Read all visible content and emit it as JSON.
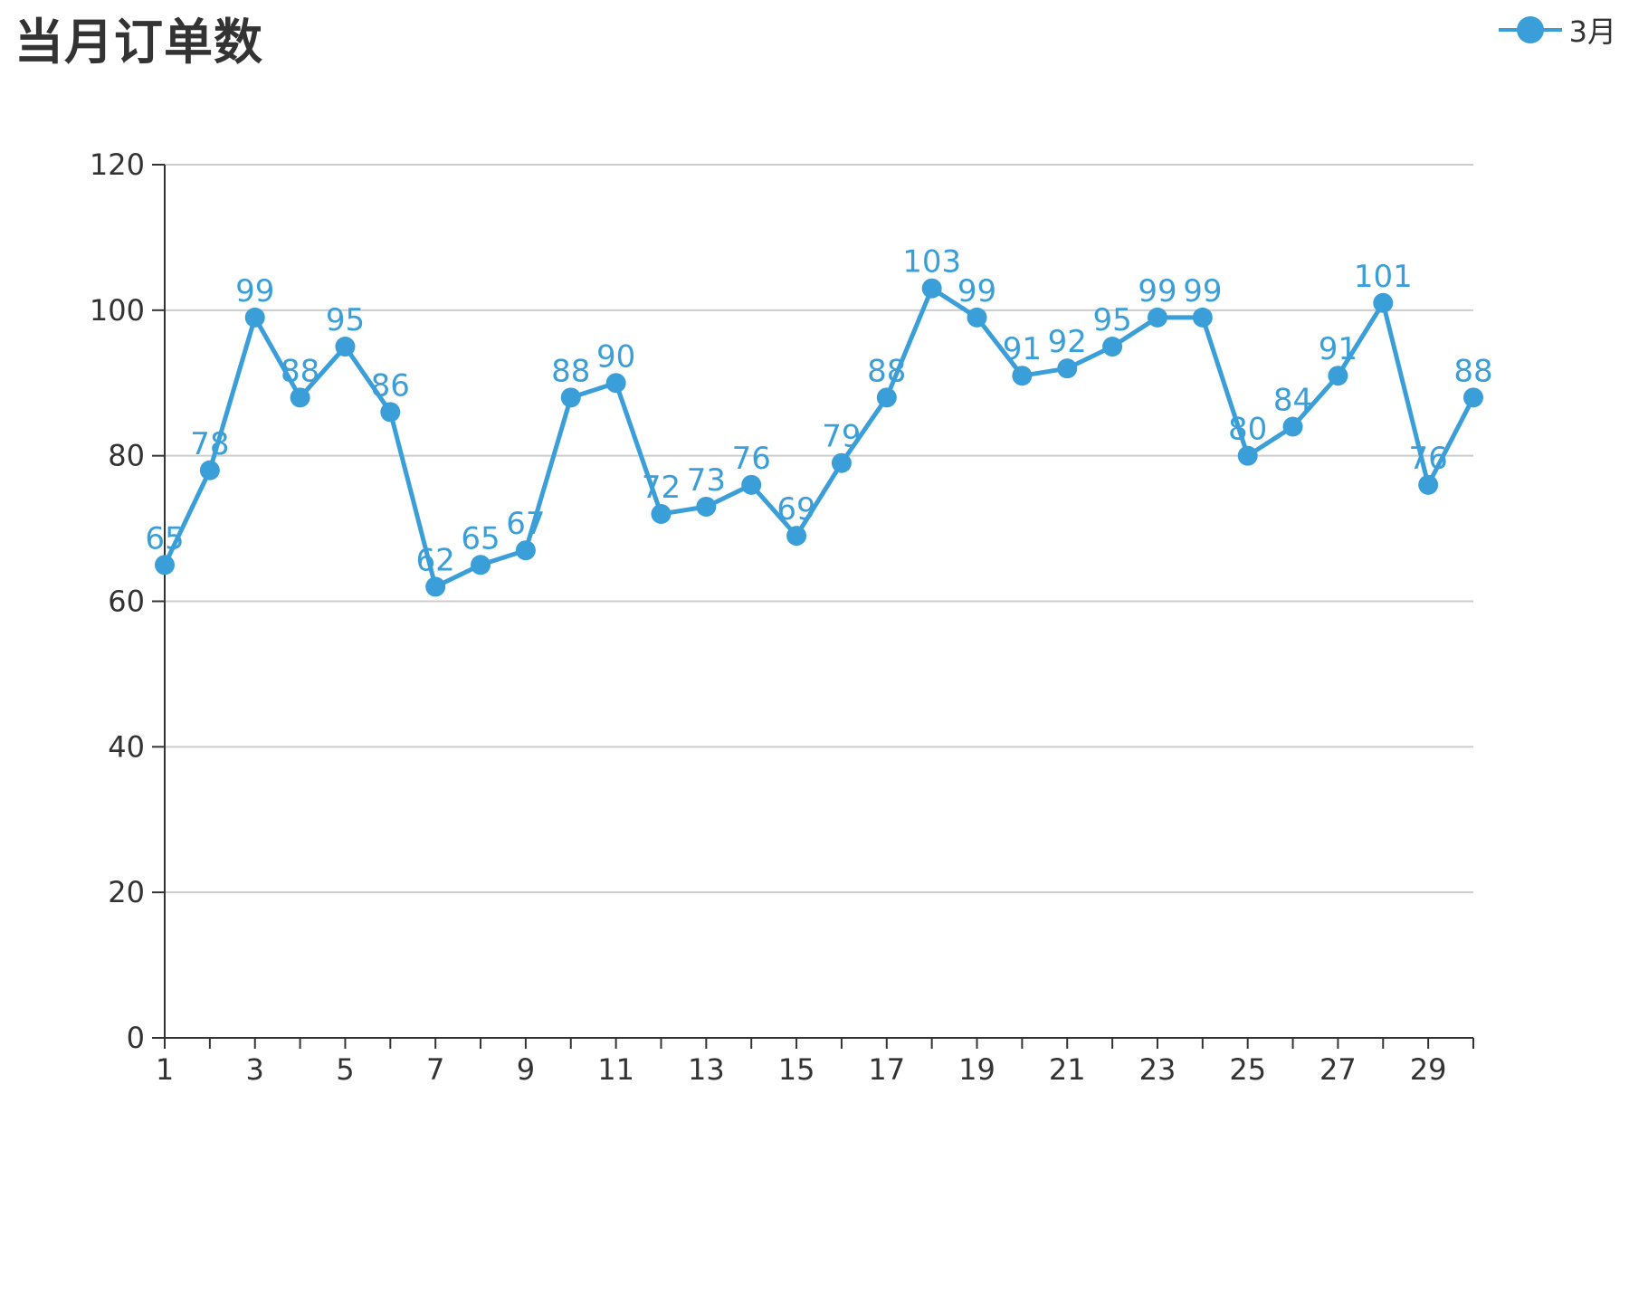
{
  "chart_data": {
    "type": "line",
    "title": "当月订单数",
    "xlabel": "",
    "ylabel": "",
    "x": [
      1,
      2,
      3,
      4,
      5,
      6,
      7,
      8,
      9,
      10,
      11,
      12,
      13,
      14,
      15,
      16,
      17,
      18,
      19,
      20,
      21,
      22,
      23,
      24,
      25,
      26,
      27,
      28,
      29,
      30
    ],
    "x_tick_labels": [
      "1",
      "3",
      "5",
      "7",
      "9",
      "11",
      "13",
      "15",
      "17",
      "19",
      "21",
      "23",
      "25",
      "27",
      "29"
    ],
    "y_tick_labels": [
      "0",
      "20",
      "40",
      "60",
      "80",
      "100",
      "120"
    ],
    "ylim": [
      0,
      120
    ],
    "grid": true,
    "legend_position": "top-right",
    "series": [
      {
        "name": "3月",
        "color": "#3a9fd8",
        "values": [
          65,
          78,
          99,
          88,
          95,
          86,
          62,
          65,
          67,
          88,
          90,
          72,
          73,
          76,
          69,
          79,
          88,
          103,
          99,
          91,
          92,
          95,
          99,
          99,
          80,
          84,
          91,
          101,
          76,
          88
        ]
      }
    ]
  }
}
